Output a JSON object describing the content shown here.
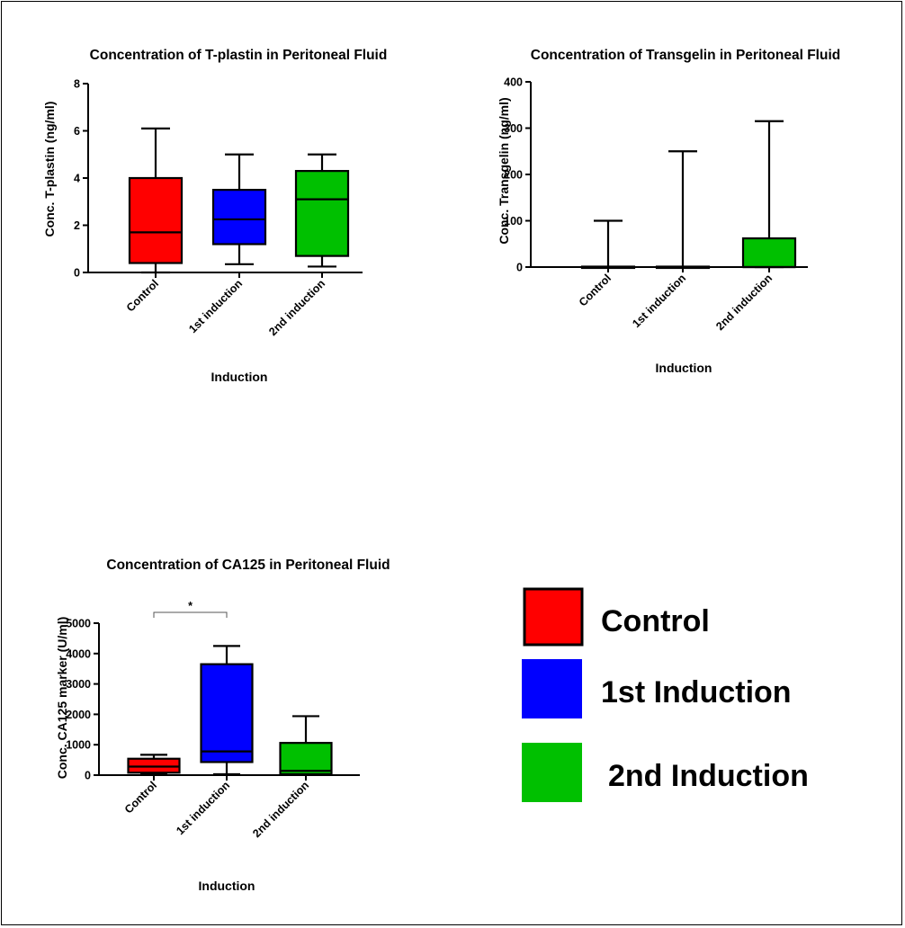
{
  "chart_data": [
    {
      "type": "box",
      "title": "Concentration of T-plastin in Peritoneal Fluid",
      "xlabel": "Induction",
      "ylabel": "Conc. T-plastin (ng/ml)",
      "ylim": [
        0,
        8
      ],
      "yticks": [
        0,
        2,
        4,
        6,
        8
      ],
      "categories": [
        "Control",
        "1st induction",
        "2nd induction"
      ],
      "colors": [
        "#ff0000",
        "#0000ff",
        "#00c000"
      ],
      "boxes": [
        {
          "min": 0.0,
          "q1": 0.4,
          "median": 1.7,
          "q3": 4.0,
          "max": 6.1
        },
        {
          "min": 0.35,
          "q1": 1.2,
          "median": 2.25,
          "q3": 3.5,
          "max": 5.0
        },
        {
          "min": 0.25,
          "q1": 0.7,
          "median": 3.1,
          "q3": 4.3,
          "max": 5.0
        }
      ]
    },
    {
      "type": "box",
      "title": "Concentration of Transgelin in Peritoneal Fluid",
      "xlabel": "Induction",
      "ylabel": "Conc. Transgelin (ng/ml)",
      "ylim": [
        0,
        400
      ],
      "yticks": [
        0,
        100,
        200,
        300,
        400
      ],
      "categories": [
        "Control",
        "1st induction",
        "2nd induction"
      ],
      "colors": [
        "#ff0000",
        "#0000ff",
        "#00c000"
      ],
      "boxes": [
        {
          "min": 0,
          "q1": 0,
          "median": 0,
          "q3": 1,
          "max": 100
        },
        {
          "min": 0,
          "q1": 0,
          "median": 0,
          "q3": 1,
          "max": 250
        },
        {
          "min": 0,
          "q1": 0,
          "median": 0,
          "q3": 62,
          "max": 315
        }
      ]
    },
    {
      "type": "box",
      "title": "Concentration of CA125 in Peritoneal Fluid",
      "xlabel": "Induction",
      "ylabel": "Conc. CA125 marker (U/ml)",
      "ylim": [
        0,
        5000
      ],
      "yticks": [
        0,
        1000,
        2000,
        3000,
        4000,
        5000
      ],
      "categories": [
        "Control",
        "1st induction",
        "2nd induction"
      ],
      "colors": [
        "#ff0000",
        "#0000ff",
        "#00c000"
      ],
      "boxes": [
        {
          "min": 30,
          "q1": 80,
          "median": 280,
          "q3": 540,
          "max": 670
        },
        {
          "min": 30,
          "q1": 430,
          "median": 780,
          "q3": 3650,
          "max": 4250
        },
        {
          "min": 10,
          "q1": 30,
          "median": 140,
          "q3": 1060,
          "max": 1940
        }
      ],
      "annotation": {
        "text": "*",
        "between": [
          "Control",
          "1st induction"
        ]
      }
    }
  ],
  "legend": {
    "items": [
      {
        "label": "Control",
        "color": "#ff0000"
      },
      {
        "label": "1st Induction",
        "color": "#0000ff"
      },
      {
        "label": "2nd Induction",
        "color": "#00c000"
      }
    ]
  }
}
